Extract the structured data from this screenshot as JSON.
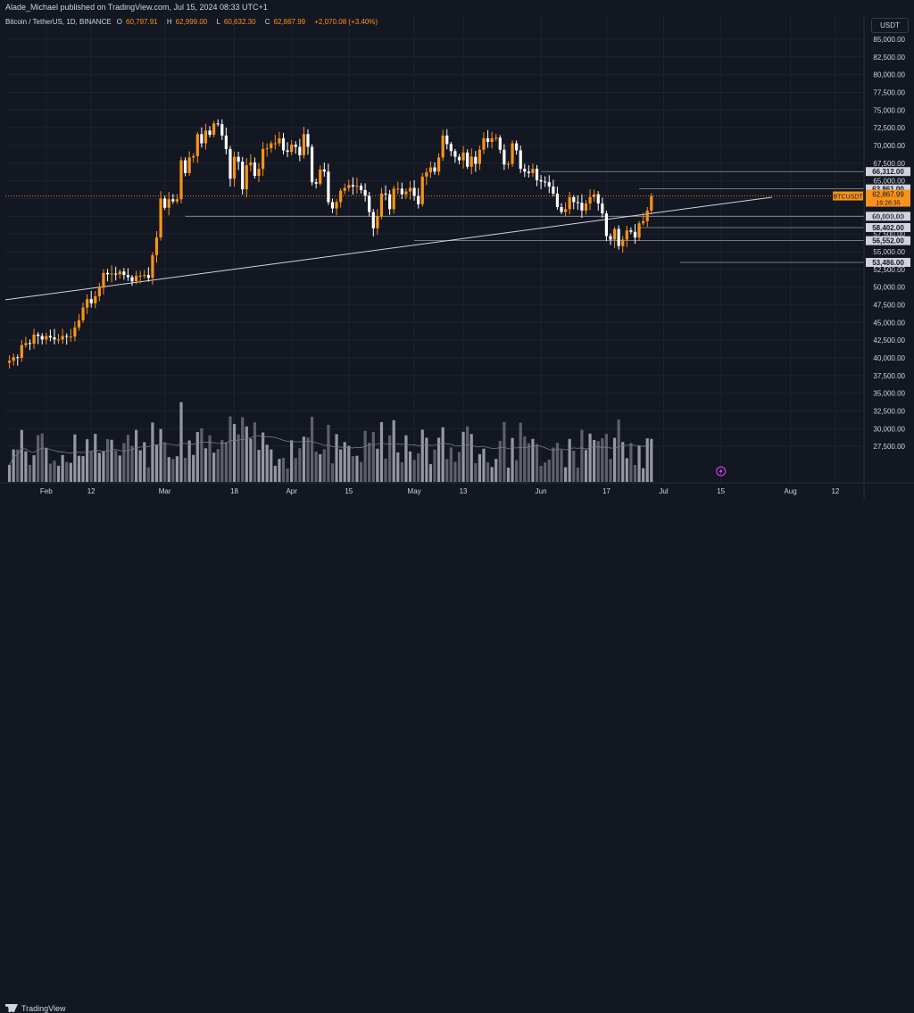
{
  "header": {
    "publish_info": "Alade_Michael published on TradingView.com, Jul 15, 2024 08:33 UTC+1",
    "symbol": "Bitcoin / TetherUS, 1D, BINANCE",
    "ohlc": {
      "o_label": "O",
      "o": "60,797.91",
      "h_label": "H",
      "h": "62,999.00",
      "l_label": "L",
      "l": "60,632.30",
      "c_label": "C",
      "c": "62,867.99",
      "change": "+2,070.08 (+3.40%)"
    }
  },
  "currency": "USDT",
  "footer": {
    "brand": "TradingView"
  },
  "colors": {
    "background": "#131722",
    "up": "#f7931a",
    "down": "#ffffff",
    "grid": "#1f2330",
    "text": "#d1d4dc",
    "price_tag": "#f7931a"
  },
  "chart_data": {
    "type": "candlestick",
    "y_axis": {
      "range": [
        25000,
        86000
      ],
      "tick_labels": [
        "85,000.00",
        "82,500.00",
        "80,000.00",
        "77,500.00",
        "75,000.00",
        "72,500.00",
        "70,000.00",
        "67,500.00",
        "65,000.00",
        "62,500.00",
        "60,000.00",
        "57,500.00",
        "55,000.00",
        "52,500.00",
        "50,000.00",
        "47,500.00",
        "45,000.00",
        "42,500.00",
        "40,000.00",
        "37,500.00",
        "35,000.00",
        "32,500.00",
        "30,000.00",
        "27,500.00"
      ],
      "tick_values": [
        85000,
        82500,
        80000,
        77500,
        75000,
        72500,
        70000,
        67500,
        65000,
        62500,
        60000,
        57500,
        55000,
        52500,
        50000,
        47500,
        45000,
        42500,
        40000,
        37500,
        35000,
        32500,
        30000,
        27500
      ]
    },
    "x_axis": {
      "date_range": [
        "2024-01-22",
        "2024-08-19"
      ],
      "tick_labels": [
        "Feb",
        "12",
        "Mar",
        "18",
        "Apr",
        "15",
        "May",
        "13",
        "Jun",
        "17",
        "Jul",
        "15",
        "Aug",
        "12"
      ],
      "tick_dates": [
        "2024-02-01",
        "2024-02-12",
        "2024-03-01",
        "2024-03-18",
        "2024-04-01",
        "2024-04-15",
        "2024-05-01",
        "2024-05-13",
        "2024-06-01",
        "2024-06-17",
        "2024-07-01",
        "2024-07-15",
        "2024-08-01",
        "2024-08-12"
      ]
    },
    "candles": {
      "start_date": "2024-01-23",
      "close": [
        39600,
        40100,
        40000,
        41800,
        42100,
        42000,
        43300,
        43100,
        42600,
        43100,
        42900,
        42600,
        42600,
        43100,
        43000,
        43000,
        44300,
        45300,
        47100,
        48300,
        47700,
        48700,
        49900,
        52000,
        51800,
        51900,
        51800,
        52200,
        51700,
        51400,
        50800,
        51600,
        51600,
        51700,
        51300,
        54500,
        57000,
        62500,
        61200,
        62400,
        62100,
        62400,
        67900,
        66100,
        68300,
        68500,
        71600,
        70300,
        72100,
        71500,
        73100,
        73000,
        71400,
        69500,
        65300,
        68400,
        67700,
        63800,
        67200,
        67600,
        65700,
        66700,
        69500,
        69600,
        70300,
        70300,
        71000,
        69300,
        69100,
        70100,
        69800,
        68600,
        71600,
        69800,
        64800,
        64600,
        66600,
        66300,
        62000,
        61100,
        62000,
        63600,
        64000,
        64400,
        64200,
        64300,
        63700,
        62900,
        60600,
        58300,
        60000,
        63200,
        63100,
        61000,
        63900,
        63900,
        63100,
        63500,
        64000,
        62900,
        61700,
        65600,
        66200,
        66900,
        66300,
        68300,
        71400,
        70200,
        69200,
        68400,
        67900,
        69000,
        67000,
        68400,
        67400,
        69400,
        71000,
        70500,
        71000,
        71100,
        69400,
        67300,
        67400,
        70300,
        69300,
        66700,
        66300,
        66100,
        66700,
        65100,
        64900,
        64800,
        64200,
        63200,
        61300,
        60600,
        61000,
        62700,
        62000,
        61900,
        60800,
        61800,
        62700,
        63100,
        61800,
        60400,
        57200,
        56700,
        58200,
        55800,
        56700,
        58000,
        57800,
        57000,
        59000,
        59300,
        60797,
        62868
      ],
      "note": "daily closes read off the chart (approximate)"
    },
    "volume_shown": true,
    "horizontal_levels": [
      66312,
      63861,
      60000,
      58402,
      56552,
      53486
    ],
    "level_labels": [
      "66,312.00",
      "63,861.00",
      "60,000.00",
      "58,402.00",
      "56,552.00",
      "53,486.00"
    ],
    "trendline": {
      "start": [
        "2024-01-22",
        48200
      ],
      "end": [
        "2024-07-17",
        61800
      ]
    },
    "current_price": {
      "symbol": "BTCUSDT",
      "price": "62,867.99",
      "countdown": "16:26:35",
      "value": 62868
    },
    "event_marker": "lightning-icon"
  }
}
